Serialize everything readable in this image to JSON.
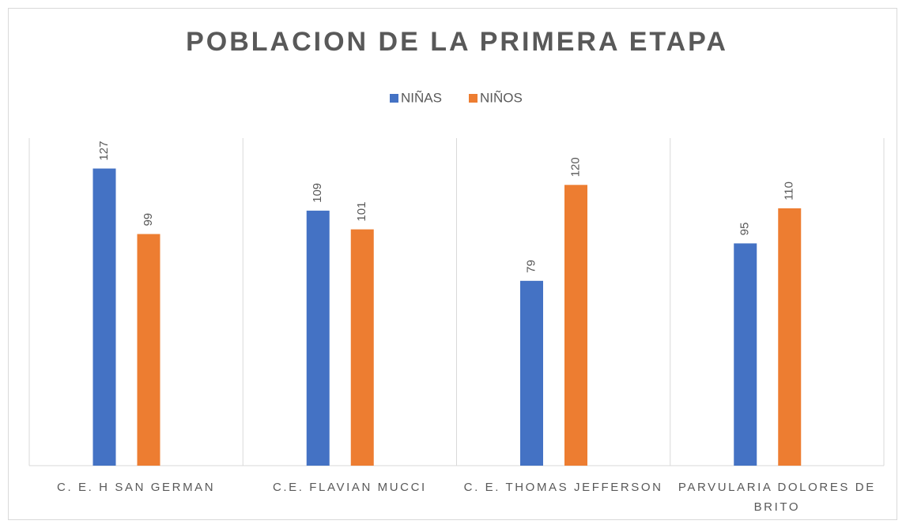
{
  "chart_data": {
    "type": "bar",
    "title": "POBLACION DE LA PRIMERA ETAPA",
    "categories": [
      "C. E. H SAN GERMAN",
      "C.E. FLAVIAN MUCCI",
      "C. E. THOMAS JEFFERSON",
      "PARVULARIA DOLORES DE BRITO"
    ],
    "series": [
      {
        "name": "NIÑAS",
        "color": "#4472c4",
        "values": [
          127,
          109,
          79,
          95
        ]
      },
      {
        "name": "NIÑOS",
        "color": "#ed7d31",
        "values": [
          99,
          101,
          120,
          110
        ]
      }
    ],
    "ylim": [
      0,
      140
    ],
    "legend": "top"
  }
}
